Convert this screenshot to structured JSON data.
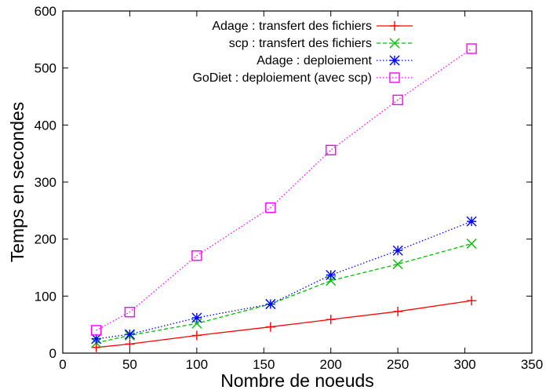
{
  "chart_data": {
    "type": "line",
    "xlabel": "Nombre de noeuds",
    "ylabel": "Temps en secondes",
    "xlim": [
      0,
      350
    ],
    "ylim": [
      0,
      600
    ],
    "xticks": [
      0,
      50,
      100,
      150,
      200,
      250,
      300,
      350
    ],
    "yticks": [
      0,
      100,
      200,
      300,
      400,
      500,
      600
    ],
    "x_tick_labels": [
      "0",
      "50",
      "100",
      "150",
      "200",
      "250",
      "300",
      "350"
    ],
    "y_tick_labels": [
      "0",
      "100",
      "200",
      "300",
      "400",
      "500",
      "600"
    ],
    "grid": false,
    "legend_position": "top-right",
    "series": [
      {
        "name": "Adage : transfert des fichiers",
        "color": "#ff0000",
        "marker": "plus",
        "dash": "solid",
        "x": [
          25,
          50,
          100,
          155,
          200,
          250,
          305
        ],
        "y": [
          10,
          16,
          31,
          46,
          59,
          73,
          92
        ]
      },
      {
        "name": "scp : transfert des fichiers",
        "color": "#00c000",
        "marker": "cross",
        "dash": "dashed",
        "x": [
          25,
          50,
          100,
          155,
          200,
          250,
          305
        ],
        "y": [
          18,
          31,
          52,
          86,
          127,
          156,
          192
        ]
      },
      {
        "name": "Adage : deploiement",
        "color": "#0000ff",
        "marker": "star",
        "dash": "dotted",
        "x": [
          25,
          50,
          100,
          155,
          200,
          250,
          305
        ],
        "y": [
          25,
          33,
          62,
          86,
          137,
          180,
          231
        ]
      },
      {
        "name": "GoDiet : deploiement (avec scp)",
        "color": "#ff00ff",
        "marker": "square",
        "dash": "dotted",
        "x": [
          25,
          50,
          100,
          155,
          200,
          250,
          305
        ],
        "y": [
          40,
          72,
          171,
          255,
          356,
          444,
          534
        ]
      }
    ]
  }
}
